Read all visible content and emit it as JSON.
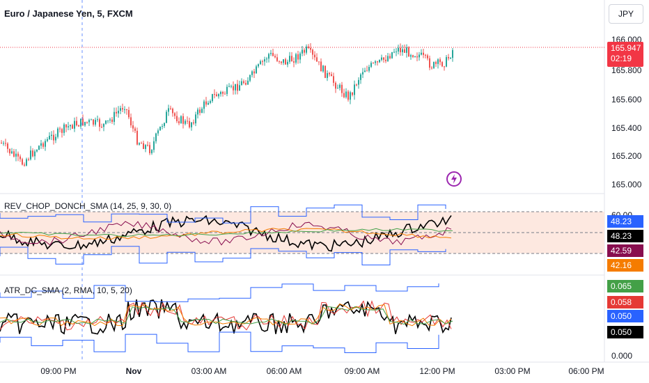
{
  "header": {
    "title": "Euro / Japanese Yen, 5, FXCM",
    "currency_button": "JPY"
  },
  "price_axis": {
    "labels": [
      "166.000",
      "165.800",
      "165.600",
      "165.400",
      "165.200",
      "165.000"
    ],
    "last_price": "165.947",
    "countdown": "02:19",
    "last_price_color": "#f23645"
  },
  "indicator1": {
    "label": "REV_CHOP_DONCH_SMA (14, 25, 9, 30, 0)",
    "axis_top": "60.00",
    "values": [
      {
        "text": "48.23",
        "bg": "#2962ff"
      },
      {
        "text": "48.23",
        "bg": "#000000"
      },
      {
        "text": "42.59",
        "bg": "#880e4f"
      },
      {
        "text": "42.16",
        "bg": "#f57c00"
      }
    ]
  },
  "indicator2": {
    "label": "ATR_DC_SMA (2, RMA, 10, 5, 20)",
    "axis_bottom": "0.000",
    "values": [
      {
        "text": "0.065",
        "bg": "#43a047"
      },
      {
        "text": "0.058",
        "bg": "#e53935"
      },
      {
        "text": "0.050",
        "bg": "#2962ff"
      },
      {
        "text": "0.050",
        "bg": "#000000"
      }
    ]
  },
  "time_axis": [
    {
      "label": "09:00 PM",
      "bold": false
    },
    {
      "label": "Nov",
      "bold": true
    },
    {
      "label": "03:00 AM",
      "bold": false
    },
    {
      "label": "06:00 AM",
      "bold": false
    },
    {
      "label": "09:00 AM",
      "bold": false
    },
    {
      "label": "12:00 PM",
      "bold": false
    },
    {
      "label": "03:00 PM",
      "bold": false
    },
    {
      "label": "06:00 PM",
      "bold": false
    }
  ],
  "colors": {
    "up": "#26a69a",
    "down": "#ef5350",
    "donchian": "#2962ff",
    "band_fill": "#fde8e0"
  },
  "icons": {
    "event_marker": "lightning-icon"
  }
}
